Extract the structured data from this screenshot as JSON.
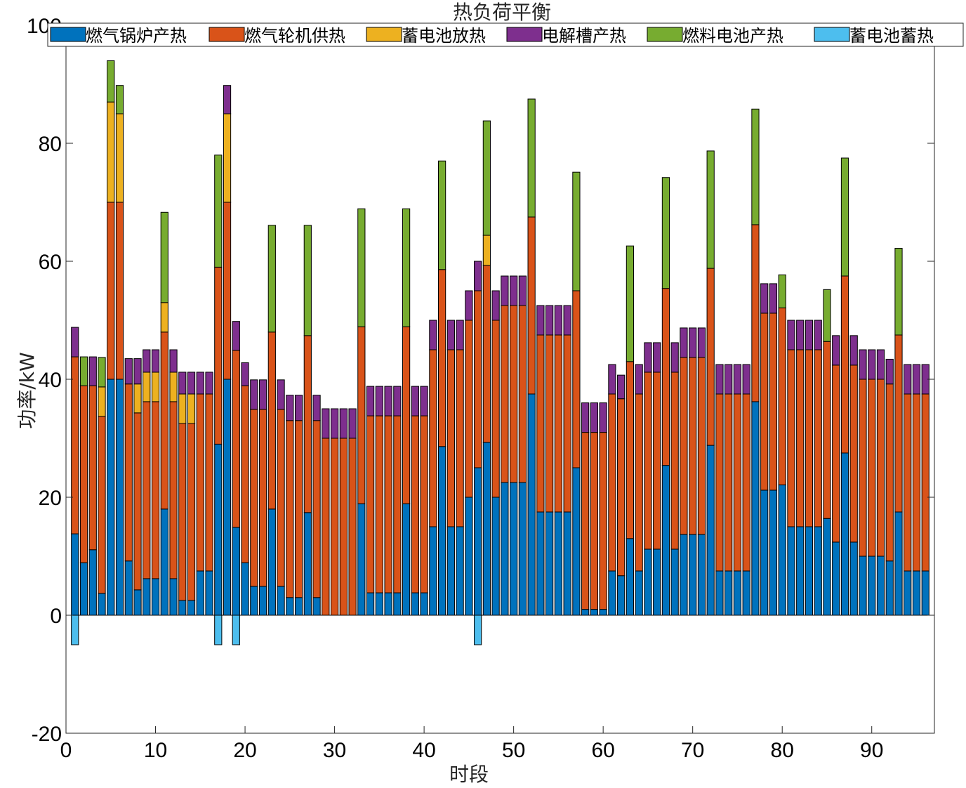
{
  "chart_data": {
    "type": "bar",
    "stacked": true,
    "title": "热负荷平衡",
    "xlabel": "时段",
    "ylabel": "功率/kW",
    "xlim": [
      0,
      97
    ],
    "ylim": [
      -20,
      100
    ],
    "xticks": [
      0,
      10,
      20,
      30,
      40,
      50,
      60,
      70,
      80,
      90
    ],
    "yticks": [
      -20,
      0,
      20,
      40,
      60,
      80,
      100
    ],
    "grid": false,
    "legend_position": "top",
    "x": [
      1,
      2,
      3,
      4,
      5,
      6,
      7,
      8,
      9,
      10,
      11,
      12,
      13,
      14,
      15,
      16,
      17,
      18,
      19,
      20,
      21,
      22,
      23,
      24,
      25,
      26,
      27,
      28,
      29,
      30,
      31,
      32,
      33,
      34,
      35,
      36,
      37,
      38,
      39,
      40,
      41,
      42,
      43,
      44,
      45,
      46,
      47,
      48,
      49,
      50,
      51,
      52,
      53,
      54,
      55,
      56,
      57,
      58,
      59,
      60,
      61,
      62,
      63,
      64,
      65,
      66,
      67,
      68,
      69,
      70,
      71,
      72,
      73,
      74,
      75,
      76,
      77,
      78,
      79,
      80,
      81,
      82,
      83,
      84,
      85,
      86,
      87,
      88,
      89,
      90,
      91,
      92,
      93,
      94,
      95,
      96
    ],
    "series": [
      {
        "name": "燃气锅炉产热",
        "color": "#0072BD",
        "values": [
          13.8,
          8.9,
          11.1,
          3.7,
          40,
          40,
          9.2,
          4.3,
          6.2,
          6.2,
          18,
          6.2,
          2.5,
          2.5,
          7.5,
          7.5,
          29,
          40,
          14.9,
          8.9,
          4.9,
          4.9,
          18,
          4.9,
          3,
          3,
          17.4,
          3,
          0,
          0,
          0,
          0,
          18.9,
          3.8,
          3.8,
          3.8,
          3.8,
          18.9,
          3.8,
          3.8,
          15,
          28.6,
          15,
          15,
          20,
          25,
          29.3,
          20,
          22.5,
          22.5,
          22.5,
          37.5,
          17.5,
          17.5,
          17.5,
          17.5,
          25,
          1,
          1,
          1,
          7.5,
          6.7,
          13,
          7.5,
          11.2,
          11.2,
          25.4,
          11.2,
          13.7,
          13.7,
          13.7,
          28.8,
          7.5,
          7.5,
          7.5,
          7.5,
          36.2,
          21.2,
          21.2,
          22.1,
          15,
          15,
          15,
          15,
          16.4,
          12.4,
          27.5,
          12.4,
          10,
          10,
          10,
          9.2,
          17.5,
          7.5,
          7.5,
          7.5
        ]
      },
      {
        "name": "燃气轮机供热",
        "color": "#D95319",
        "values": [
          30,
          30,
          27.8,
          30,
          30,
          30,
          30,
          30,
          30,
          30,
          30,
          30,
          30,
          30,
          30,
          30,
          30,
          30,
          30,
          30,
          30,
          30,
          30,
          30,
          30,
          30,
          30,
          30,
          30,
          30,
          30,
          30,
          30,
          30,
          30,
          30,
          30,
          30,
          30,
          30,
          30,
          30,
          30,
          30,
          30,
          30,
          30,
          30,
          30,
          30,
          30,
          30,
          30,
          30,
          30,
          30,
          30,
          30,
          30,
          30,
          30,
          30,
          30,
          30,
          30,
          30,
          30,
          30,
          30,
          30,
          30,
          30,
          30,
          30,
          30,
          30,
          30,
          30,
          30,
          30,
          30,
          30,
          30,
          30,
          30,
          30,
          30,
          30,
          30,
          30,
          30,
          30,
          30,
          30,
          30,
          30
        ]
      },
      {
        "name": "蓄电池放热",
        "color": "#EDB120",
        "values": [
          0,
          0,
          0,
          5,
          17,
          15,
          0,
          4.9,
          5,
          5,
          5,
          5,
          5,
          5,
          0,
          0,
          0,
          15,
          0,
          0,
          0,
          0,
          0,
          0,
          0,
          0,
          0,
          0,
          0,
          0,
          0,
          0,
          0,
          0,
          0,
          0,
          0,
          0,
          0,
          0,
          0,
          0,
          0,
          0,
          0,
          0,
          5.1,
          0,
          0,
          0,
          0,
          0,
          0,
          0,
          0,
          0,
          0,
          0,
          0,
          0,
          0,
          0,
          0,
          0,
          0,
          0,
          0,
          0,
          0,
          0,
          0,
          0,
          0,
          0,
          0,
          0,
          0,
          0,
          0,
          0,
          0,
          0,
          0,
          0,
          0,
          0,
          0,
          0,
          0,
          0,
          0,
          0,
          0,
          0,
          0,
          0
        ]
      },
      {
        "name": "电解槽产热",
        "color": "#7E2F8E",
        "values": [
          5,
          0,
          4.9,
          0,
          0,
          0,
          4.3,
          4.3,
          3.8,
          3.8,
          0,
          3.8,
          3.7,
          3.7,
          3.7,
          3.7,
          0,
          4.8,
          4.9,
          3.9,
          5,
          5,
          0,
          5,
          4.3,
          4.3,
          0,
          4.3,
          5,
          5,
          5,
          5,
          0,
          5,
          5,
          5,
          5,
          0,
          5,
          5,
          5,
          0,
          5,
          5,
          5,
          5,
          0,
          5,
          5,
          5,
          5,
          0,
          5,
          5,
          5,
          5,
          0,
          5,
          5,
          5,
          5,
          4,
          0,
          5,
          5,
          5,
          0,
          5,
          5,
          5,
          5,
          0,
          5,
          5,
          5,
          5,
          0,
          5,
          5,
          0,
          5,
          5,
          5,
          5,
          0,
          5,
          0,
          5,
          5,
          5,
          5,
          4.2,
          0,
          5,
          5,
          5
        ]
      },
      {
        "name": "燃料电池产热",
        "color": "#77AC30",
        "values": [
          0,
          4.9,
          0,
          5,
          7,
          4.8,
          0,
          0,
          0,
          0,
          15.3,
          0,
          0,
          0,
          0,
          0,
          19,
          0,
          0,
          0,
          0,
          0,
          18.1,
          0,
          0,
          0,
          18.7,
          0,
          0,
          0,
          0,
          0,
          20,
          0,
          0,
          0,
          0,
          20,
          0,
          0,
          0,
          18.4,
          0,
          0,
          0,
          0,
          19.4,
          0,
          0,
          0,
          0,
          20,
          0,
          0,
          0,
          0,
          20.1,
          0,
          0,
          0,
          0,
          0,
          19.6,
          0,
          0,
          0,
          18.8,
          0,
          0,
          0,
          0,
          19.9,
          0,
          0,
          0,
          0,
          19.6,
          0,
          0,
          5.6,
          0,
          0,
          0,
          0,
          8.8,
          0,
          20,
          0,
          0,
          0,
          0,
          0,
          14.7,
          0,
          0,
          0
        ]
      },
      {
        "name": "蓄电池蓄热",
        "color": "#4DBEEE",
        "values": [
          -5,
          0,
          0,
          0,
          0,
          0,
          0,
          0,
          0,
          0,
          0,
          0,
          0,
          0,
          0,
          0,
          -5,
          0,
          -5,
          0,
          0,
          0,
          0,
          0,
          0,
          0,
          0,
          0,
          0,
          0,
          0,
          0,
          0,
          0,
          0,
          0,
          0,
          0,
          0,
          0,
          0,
          0,
          0,
          0,
          0,
          -5,
          0,
          0,
          0,
          0,
          0,
          0,
          0,
          0,
          0,
          0,
          0,
          0,
          0,
          0,
          0,
          0,
          0,
          0,
          0,
          0,
          0,
          0,
          0,
          0,
          0,
          0,
          0,
          0,
          0,
          0,
          0,
          0,
          0,
          0,
          0,
          0,
          0,
          0,
          0,
          0,
          0,
          0,
          0,
          0,
          0,
          0,
          0,
          0,
          0,
          0
        ]
      }
    ]
  }
}
